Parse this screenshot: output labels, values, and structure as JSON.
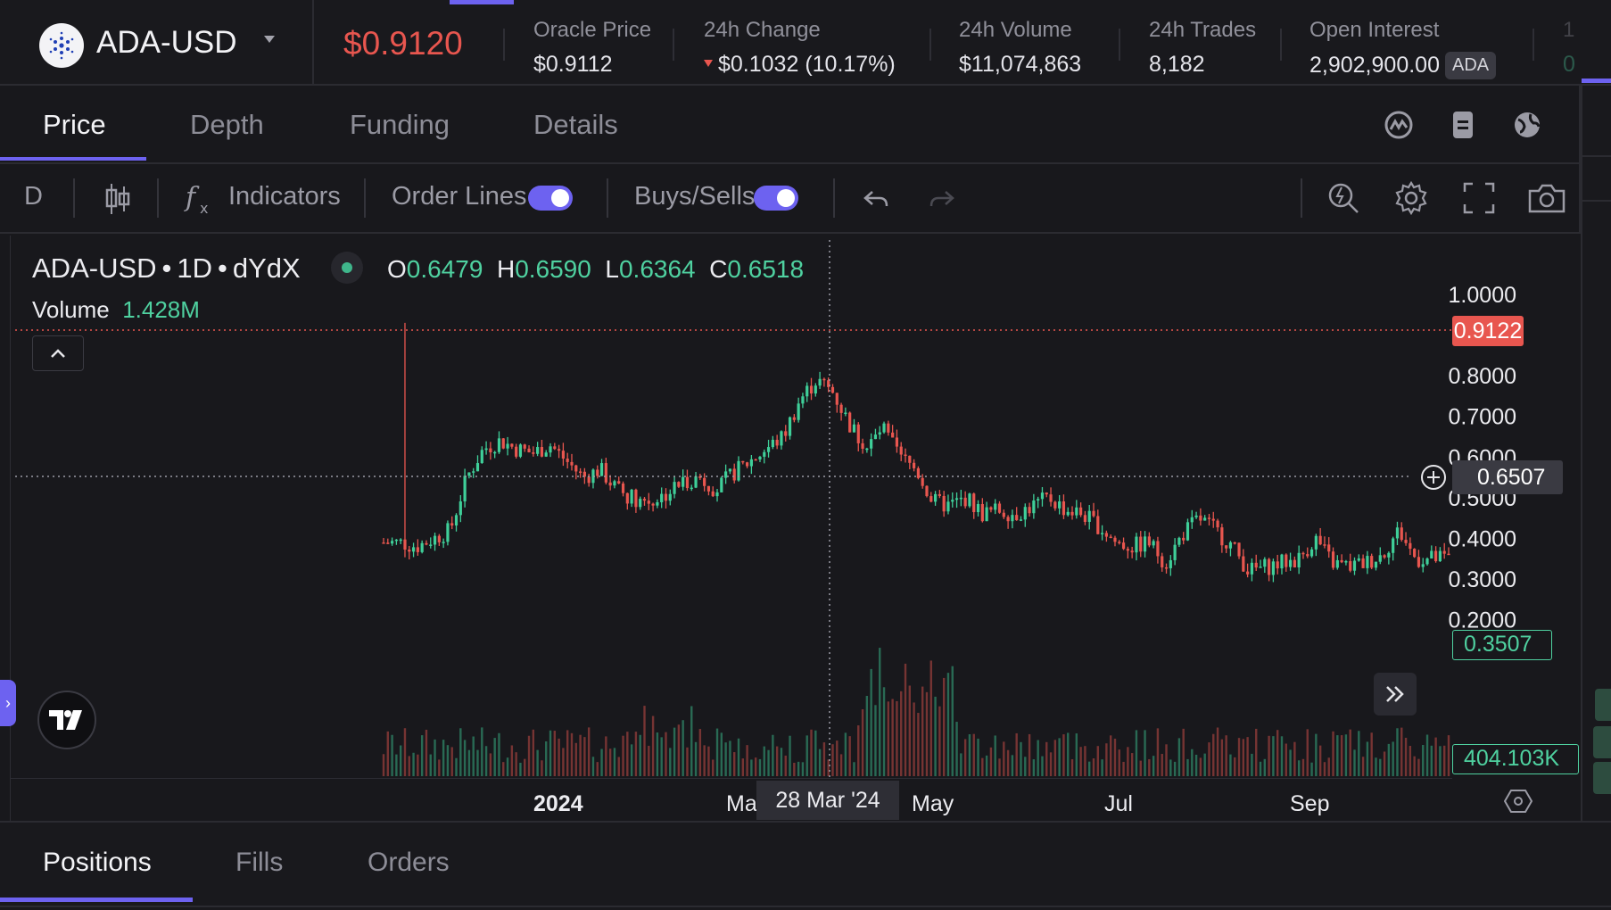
{
  "header": {
    "market": "ADA-USD",
    "price": "$0.9120",
    "stats": [
      {
        "label": "Oracle Price",
        "value": "$0.9112"
      },
      {
        "label": "24h Change",
        "value": "$0.1032 (10.17%)"
      },
      {
        "label": "24h Volume",
        "value": "$11,074,863"
      },
      {
        "label": "24h Trades",
        "value": "8,182"
      },
      {
        "label": "Open Interest",
        "value": "2,902,900.00",
        "unit": "ADA"
      }
    ],
    "cut_label": "1",
    "cut_value": "0"
  },
  "tabs": {
    "price": "Price",
    "depth": "Depth",
    "funding": "Funding",
    "details": "Details"
  },
  "toolbar": {
    "interval": "D",
    "indicators": "Indicators",
    "order_lines": "Order Lines",
    "buys_sells": "Buys/Sells"
  },
  "legend": {
    "symbol": "ADA-USD",
    "interval": "1D",
    "exchange": "dYdX",
    "o_label": "O",
    "o": "0.6479",
    "h_label": "H",
    "h": "0.6590",
    "l_label": "L",
    "l": "0.6364",
    "c_label": "C",
    "c": "0.6518",
    "volume_label": "Volume",
    "volume": "1.428M"
  },
  "chart_data": {
    "type": "candlestick",
    "symbol": "ADA-USD",
    "interval": "1D",
    "y_ticks": [
      "1.0000",
      "0.8000",
      "0.7000",
      "0.6000",
      "0.5000",
      "0.4000",
      "0.3000",
      "0.2000"
    ],
    "y_range": [
      0.15,
      1.05
    ],
    "x_labels": [
      "2024",
      "Ma",
      "May",
      "Jul",
      "Sep"
    ],
    "crosshair_date": "28 Mar '24",
    "crosshair_price": "0.6507",
    "last_price_label": "0.9122",
    "last_close_label": "0.3507",
    "volume_label": "404.103K",
    "approx_closes": [
      0.39,
      0.39,
      0.38,
      0.4,
      0.42,
      0.55,
      0.62,
      0.64,
      0.62,
      0.61,
      0.63,
      0.59,
      0.55,
      0.57,
      0.52,
      0.5,
      0.49,
      0.51,
      0.54,
      0.55,
      0.52,
      0.56,
      0.59,
      0.62,
      0.65,
      0.74,
      0.79,
      0.76,
      0.68,
      0.62,
      0.67,
      0.6,
      0.57,
      0.49,
      0.48,
      0.5,
      0.46,
      0.47,
      0.46,
      0.48,
      0.5,
      0.47,
      0.46,
      0.43,
      0.39,
      0.38,
      0.39,
      0.34,
      0.41,
      0.45,
      0.42,
      0.38,
      0.32,
      0.33,
      0.34,
      0.35,
      0.4,
      0.34,
      0.33,
      0.34,
      0.36,
      0.42,
      0.35,
      0.35,
      0.35
    ]
  },
  "bottom": {
    "positions": "Positions",
    "fills": "Fills",
    "orders": "Orders"
  }
}
